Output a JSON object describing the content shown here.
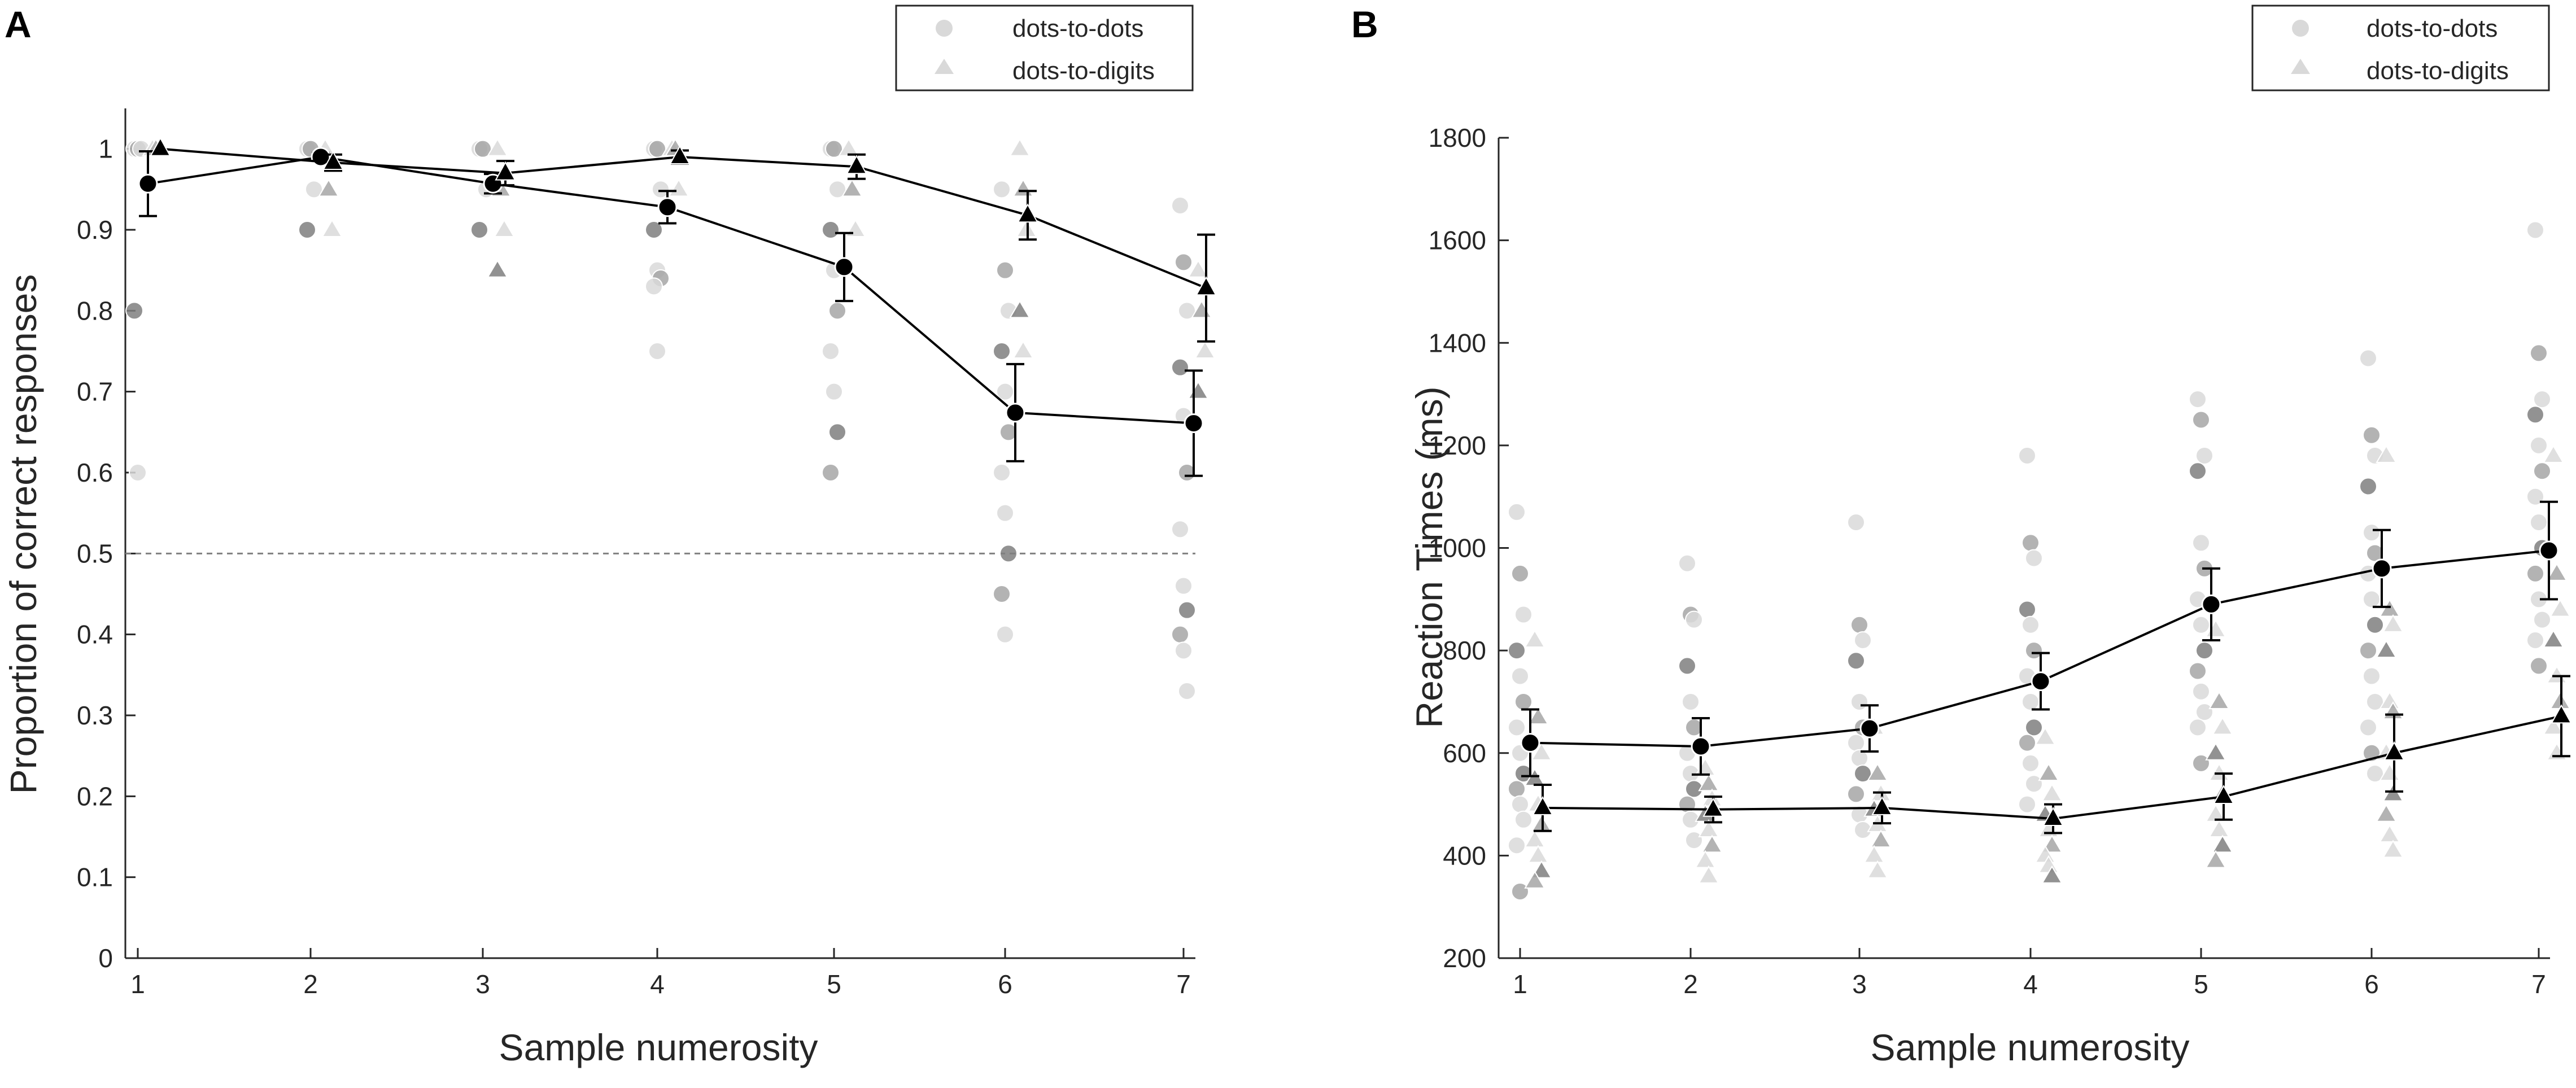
{
  "figure_labels": {
    "panel_a": "A",
    "panel_b": "B"
  },
  "colors": {
    "mean_marker": "#000000",
    "individual_light": "#d9d9d9",
    "individual_mid": "#a6a6a6",
    "individual_dark": "#7f7f7f",
    "chance_line": "#808080",
    "axis": "#262626"
  },
  "chart_data": [
    {
      "id": "A",
      "type": "line",
      "title": "",
      "xlabel": "Sample numerosity",
      "ylabel": "Proportion of correct responses",
      "categories": [
        "1",
        "2",
        "3",
        "4",
        "5",
        "6",
        "7"
      ],
      "x": [
        1,
        2,
        3,
        4,
        5,
        6,
        7
      ],
      "xlim": [
        0.95,
        7.08
      ],
      "ylim": [
        0,
        1.05
      ],
      "yticks": [
        0,
        0.1,
        0.2,
        0.3,
        0.4,
        0.5,
        0.6,
        0.7,
        0.8,
        0.9,
        1
      ],
      "ytick_labels": [
        "0",
        "0.1",
        "0.2",
        "0.3",
        "0.4",
        "0.5",
        "0.6",
        "0.7",
        "0.8",
        "0.9",
        "1"
      ],
      "reference_line": 0.5,
      "legend": {
        "position": "top-right",
        "entries": [
          "dots-to-dots",
          "dots-to-digits"
        ]
      },
      "series": [
        {
          "name": "dots-to-dots",
          "marker": "circle",
          "values": [
            0.957,
            0.99,
            0.957,
            0.928,
            0.854,
            0.674,
            0.661
          ],
          "errors": [
            0.04,
            0.005,
            0.012,
            0.02,
            0.042,
            0.06,
            0.065
          ],
          "individual": [
            [
              1.0,
              1.0,
              1.0,
              0.8,
              0.6
            ],
            [
              1.0,
              1.0,
              0.95,
              0.9
            ],
            [
              1.0,
              1.0,
              0.95,
              0.9
            ],
            [
              1.0,
              1.0,
              0.95,
              0.9,
              0.85,
              0.84,
              0.83,
              0.75
            ],
            [
              1.0,
              1.0,
              0.95,
              0.9,
              0.85,
              0.8,
              0.75,
              0.7,
              0.65,
              0.6
            ],
            [
              0.95,
              0.85,
              0.8,
              0.75,
              0.7,
              0.65,
              0.6,
              0.55,
              0.5,
              0.45,
              0.4
            ],
            [
              0.93,
              0.86,
              0.8,
              0.73,
              0.67,
              0.6,
              0.53,
              0.46,
              0.43,
              0.4,
              0.38,
              0.33
            ]
          ]
        },
        {
          "name": "dots-to-digits",
          "marker": "triangle",
          "values": [
            1.0,
            0.983,
            0.97,
            0.99,
            0.978,
            0.918,
            0.828
          ],
          "errors": [
            0.0,
            0.01,
            0.015,
            0.008,
            0.015,
            0.03,
            0.066
          ],
          "individual": [
            [
              1.0,
              1.0
            ],
            [
              1.0,
              0.95,
              0.9
            ],
            [
              1.0,
              0.95,
              0.9,
              0.85
            ],
            [
              1.0,
              1.0,
              0.95
            ],
            [
              1.0,
              0.95,
              0.9
            ],
            [
              1.0,
              0.95,
              0.9,
              0.8,
              0.75
            ],
            [
              0.85,
              0.8,
              0.75,
              0.7
            ]
          ]
        }
      ]
    },
    {
      "id": "B",
      "type": "line",
      "title": "",
      "xlabel": "Sample numerosity",
      "ylabel": "Reaction Times (ms)",
      "categories": [
        "1",
        "2",
        "3",
        "4",
        "5",
        "6",
        "7"
      ],
      "x": [
        1,
        2,
        3,
        4,
        5,
        6,
        7
      ],
      "xlim": [
        0.95,
        7.08
      ],
      "ylim": [
        200,
        1800
      ],
      "yticks": [
        200,
        400,
        600,
        800,
        1000,
        1200,
        1400,
        1600,
        1800
      ],
      "ytick_labels": [
        "200",
        "400",
        "600",
        "800",
        "1000",
        "1200",
        "1400",
        "1600",
        "1800"
      ],
      "legend": {
        "position": "top-right",
        "entries": [
          "dots-to-dots",
          "dots-to-digits"
        ]
      },
      "series": [
        {
          "name": "dots-to-dots",
          "marker": "circle",
          "values": [
            620,
            613,
            648,
            740,
            890,
            960,
            995
          ],
          "errors": [
            65,
            55,
            45,
            55,
            70,
            75,
            95
          ],
          "individual": [
            [
              1070,
              950,
              870,
              800,
              750,
              700,
              650,
              600,
              560,
              530,
              500,
              470,
              420,
              330
            ],
            [
              970,
              870,
              860,
              770,
              700,
              650,
              600,
              560,
              530,
              500,
              470,
              430
            ],
            [
              1050,
              850,
              820,
              780,
              700,
              650,
              620,
              590,
              560,
              520,
              480,
              450
            ],
            [
              1180,
              1010,
              980,
              880,
              850,
              800,
              750,
              700,
              650,
              620,
              580,
              540,
              500
            ],
            [
              1290,
              1250,
              1180,
              1150,
              1010,
              960,
              900,
              850,
              800,
              760,
              720,
              680,
              650,
              580
            ],
            [
              1370,
              1220,
              1180,
              1120,
              1030,
              990,
              950,
              900,
              850,
              800,
              750,
              700,
              650,
              600,
              560
            ],
            [
              1620,
              1380,
              1290,
              1260,
              1200,
              1150,
              1100,
              1050,
              1000,
              950,
              900,
              860,
              820,
              770
            ]
          ]
        },
        {
          "name": "dots-to-digits",
          "marker": "triangle",
          "values": [
            493,
            490,
            493,
            472,
            515,
            600,
            672
          ],
          "errors": [
            45,
            25,
            30,
            28,
            45,
            75,
            78
          ],
          "individual": [
            [
              820,
              670,
              600,
              550,
              500,
              460,
              430,
              400,
              370,
              350
            ],
            [
              570,
              540,
              510,
              480,
              450,
              420,
              390,
              360
            ],
            [
              650,
              560,
              520,
              490,
              460,
              430,
              400,
              370
            ],
            [
              630,
              560,
              520,
              480,
              450,
              420,
              400,
              380,
              360
            ],
            [
              840,
              700,
              650,
              600,
              560,
              520,
              480,
              450,
              420,
              390
            ],
            [
              1180,
              880,
              850,
              800,
              700,
              680,
              600,
              560,
              520,
              480,
              440,
              410
            ],
            [
              1180,
              950,
              880,
              820,
              750,
              700,
              650,
              600
            ]
          ]
        }
      ]
    }
  ]
}
